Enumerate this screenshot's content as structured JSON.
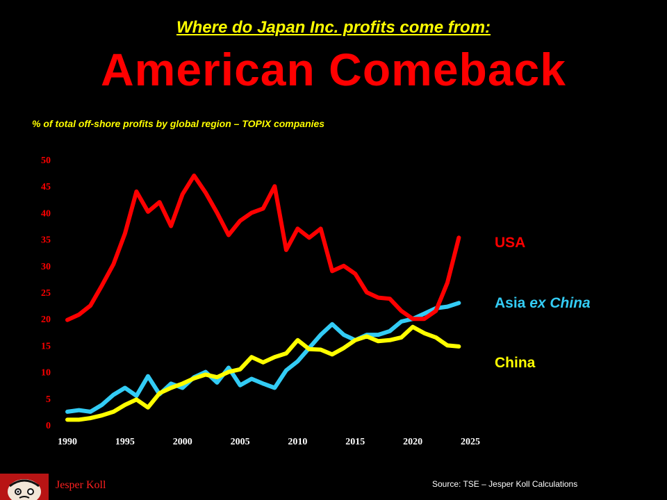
{
  "header": {
    "supertitle": "Where do Japan Inc.  profits come from:",
    "title": "American Comeback",
    "subtitle": "% of total off-shore profits  by global region – TOPIX companies"
  },
  "legend": {
    "usa": "USA",
    "asia_prefix": "Asia ",
    "asia_italic": "ex China",
    "china": "China"
  },
  "footer": {
    "author": "Jesper Koll",
    "source": "Source: TSE – Jesper Koll Calculations"
  },
  "colors": {
    "usa": "#ff0000",
    "asia": "#33ccf5",
    "china": "#ffff00",
    "background": "#000000",
    "y_ticks": "#ff0000",
    "x_ticks": "#ffffff"
  },
  "chart_data": {
    "type": "line",
    "title": "American Comeback",
    "subtitle": "% of total off-shore profits  by global region – TOPIX companies",
    "xlim": [
      1990,
      2025
    ],
    "ylim": [
      0,
      50
    ],
    "x_ticks": [
      1990,
      1995,
      2000,
      2005,
      2010,
      2015,
      2020,
      2025
    ],
    "y_ticks": [
      0,
      5,
      10,
      15,
      20,
      25,
      30,
      35,
      40,
      45,
      50
    ],
    "grid": false,
    "legend_position": "right",
    "x": [
      1990,
      1991,
      1992,
      1993,
      1994,
      1995,
      1996,
      1997,
      1998,
      1999,
      2000,
      2001,
      2002,
      2003,
      2004,
      2005,
      2006,
      2007,
      2008,
      2009,
      2010,
      2011,
      2012,
      2013,
      2014,
      2015,
      2016,
      2017,
      2018,
      2019,
      2020,
      2021,
      2022,
      2023,
      2024
    ],
    "series": [
      {
        "name": "USA",
        "color": "#ff0000",
        "values": [
          19.8,
          20.8,
          22.5,
          26.3,
          30.3,
          36.1,
          44.0,
          40.2,
          42.0,
          37.5,
          43.5,
          47.0,
          43.8,
          40.0,
          35.8,
          38.5,
          40.0,
          40.8,
          45.0,
          33.0,
          37.0,
          35.3,
          37.0,
          29.0,
          30.0,
          28.5,
          25.0,
          24.0,
          23.8,
          21.5,
          20.0,
          20.0,
          21.5,
          26.8,
          35.3
        ]
      },
      {
        "name": "Asia ex China",
        "color": "#33ccf5",
        "values": [
          2.5,
          2.8,
          2.5,
          3.8,
          5.7,
          7.0,
          5.5,
          9.2,
          5.8,
          7.8,
          7.0,
          9.0,
          10.0,
          8.0,
          10.8,
          7.5,
          8.7,
          7.8,
          7.0,
          10.3,
          12.0,
          14.5,
          17.0,
          19.0,
          17.0,
          16.0,
          17.0,
          17.0,
          17.7,
          19.5,
          20.0,
          21.0,
          22.0,
          22.3,
          23.0
        ]
      },
      {
        "name": "China",
        "color": "#ffff00",
        "values": [
          1.0,
          1.0,
          1.3,
          1.8,
          2.5,
          3.8,
          4.8,
          3.3,
          6.0,
          7.0,
          7.8,
          8.8,
          9.5,
          9.0,
          10.0,
          10.5,
          12.8,
          11.8,
          12.8,
          13.5,
          16.0,
          14.3,
          14.2,
          13.3,
          14.5,
          16.0,
          16.7,
          15.8,
          16.0,
          16.5,
          18.5,
          17.3,
          16.5,
          15.0,
          14.8
        ]
      }
    ]
  }
}
